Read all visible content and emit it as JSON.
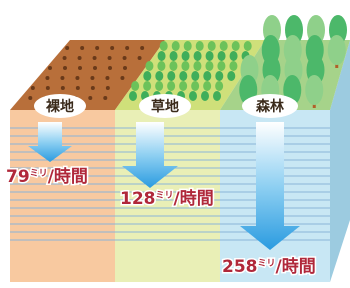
{
  "panels": [
    {
      "label": "裸地",
      "value": "79",
      "unit": "ミリ",
      "per": "/時間"
    },
    {
      "label": "草地",
      "value": "128",
      "unit": "ミリ",
      "per": "/時間"
    },
    {
      "label": "森林",
      "value": "258",
      "unit": "ミリ",
      "per": "/時間"
    }
  ]
}
